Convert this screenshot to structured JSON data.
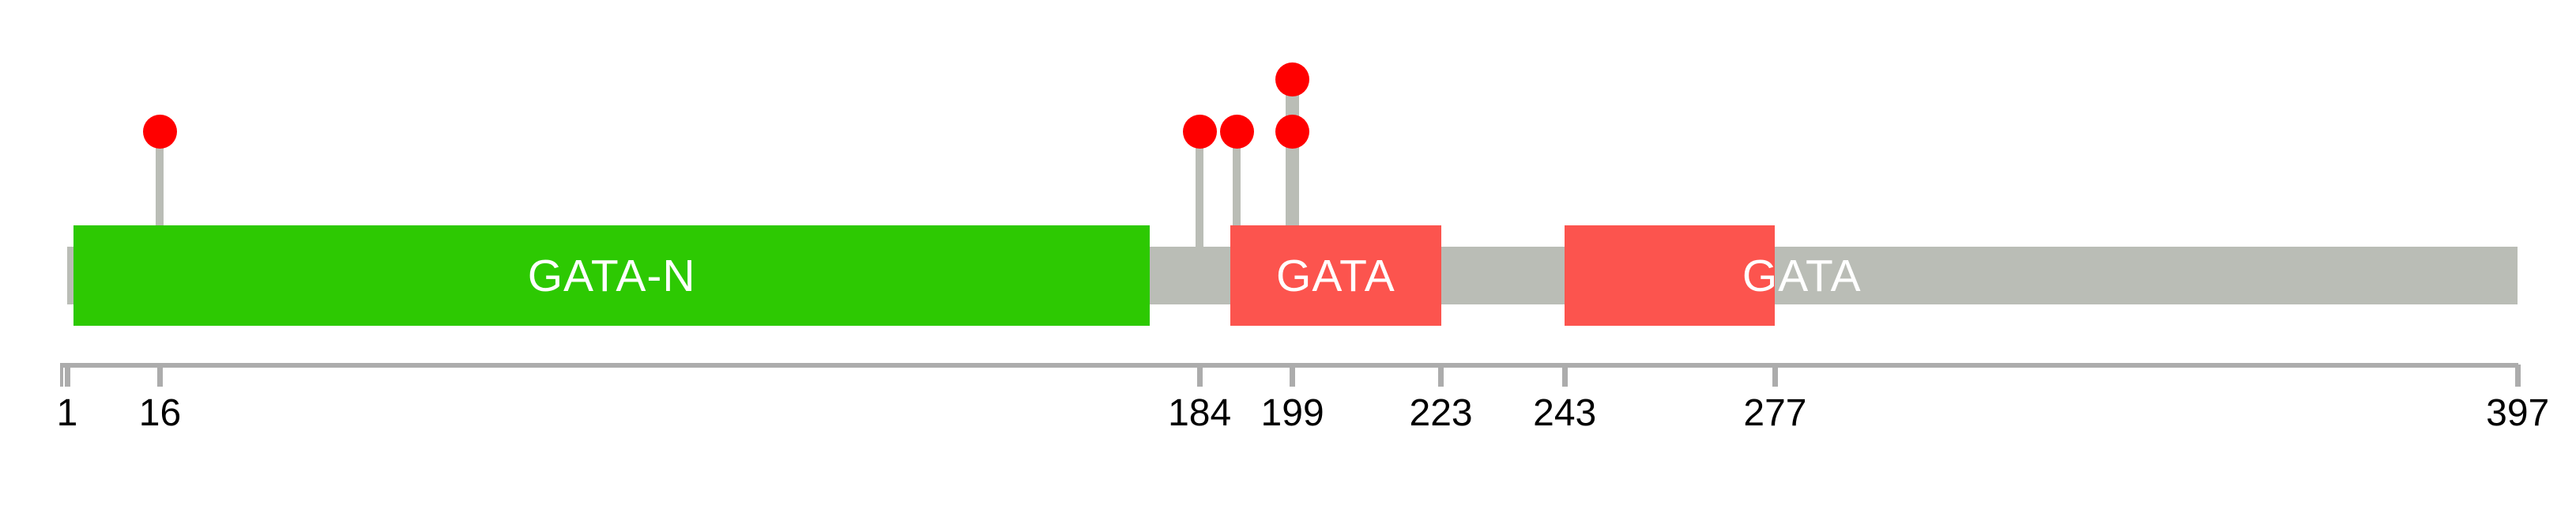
{
  "figure": {
    "background_color": "#ffffff",
    "description": "Protein domain lollipop diagram"
  },
  "chart_data": {
    "type": "lollipop",
    "title": "",
    "protein_length": 397,
    "xlim": [
      1,
      397
    ],
    "axis_ticks": [
      1,
      16,
      184,
      199,
      223,
      243,
      277,
      397
    ],
    "grid": false,
    "legend": null,
    "domains": [
      {
        "label": "GATA-N",
        "start": 2,
        "end": 176,
        "fill": "#2DC902",
        "text_color": "#FFFFFF",
        "label_offset_x": 0
      },
      {
        "label": "GATA",
        "start": 189,
        "end": 223,
        "fill": "#FC544E",
        "text_color": "#FFFFFF",
        "label_offset_x": 0
      },
      {
        "label": "GATA",
        "start": 243,
        "end": 277,
        "fill": "#FC544E",
        "text_color": "#FFFFFF",
        "label_offset_x": 167
      }
    ],
    "mutations": [
      {
        "position": 16,
        "count": 1
      },
      {
        "position": 184,
        "count": 1
      },
      {
        "position": 190,
        "count": 1
      },
      {
        "position": 199,
        "count": 2
      }
    ],
    "colors": {
      "backbone": "#BABDB6",
      "stick": "#BABDB6",
      "lollipop": "#FF0000",
      "axis": "#ACACAC",
      "tick": "#ACACAC",
      "tick_label": "#000000"
    }
  }
}
